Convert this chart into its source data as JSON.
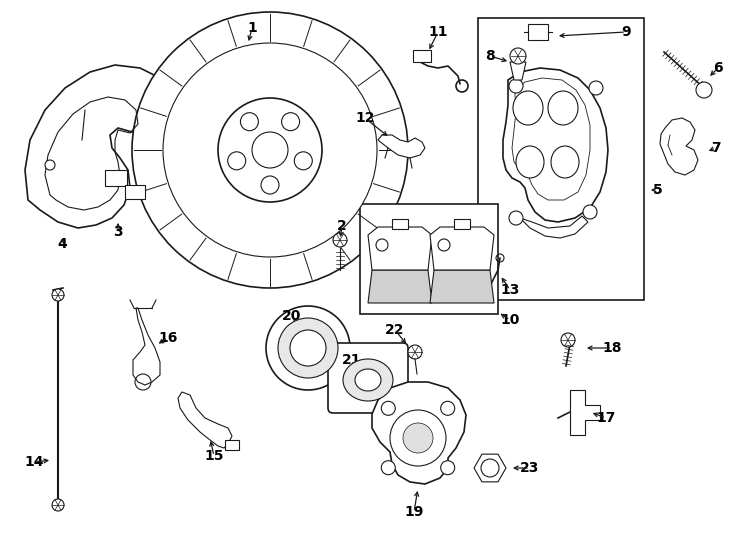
{
  "background_color": "#ffffff",
  "line_color": "#1a1a1a",
  "label_color": "#000000",
  "fig_w": 7.34,
  "fig_h": 5.4,
  "dpi": 100
}
